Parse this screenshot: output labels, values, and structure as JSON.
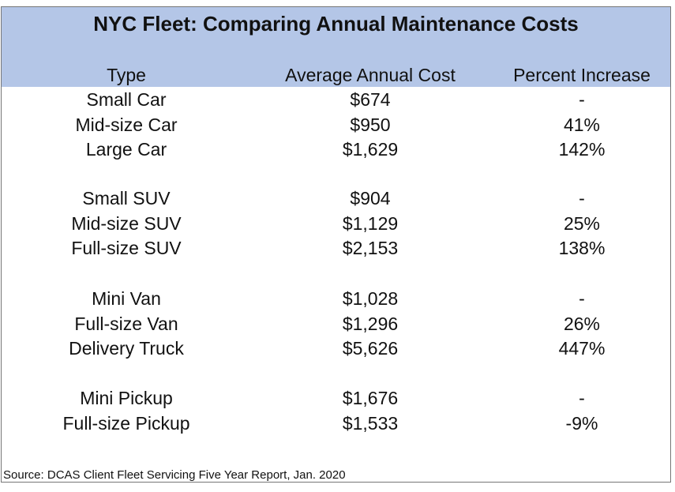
{
  "title": "NYC Fleet: Comparing Annual Maintenance Costs",
  "header_color": "#b4c6e7",
  "columns": [
    "Type",
    "Average Annual Cost",
    "Percent Increase"
  ],
  "groups": [
    [
      [
        "Small Car",
        "$674",
        "-"
      ],
      [
        "Mid-size Car",
        "$950",
        "41%"
      ],
      [
        "Large Car",
        "$1,629",
        "142%"
      ]
    ],
    [
      [
        "Small SUV",
        "$904",
        "-"
      ],
      [
        "Mid-size SUV",
        "$1,129",
        "25%"
      ],
      [
        "Full-size SUV",
        "$2,153",
        "138%"
      ]
    ],
    [
      [
        "Mini Van",
        "$1,028",
        "-"
      ],
      [
        "Full-size Van",
        "$1,296",
        "26%"
      ],
      [
        "Delivery Truck",
        "$5,626",
        "447%"
      ]
    ],
    [
      [
        "Mini Pickup",
        "$1,676",
        "-"
      ],
      [
        "Full-size Pickup",
        "$1,533",
        "-9%"
      ]
    ]
  ],
  "source": "Source: DCAS Client Fleet Servicing Five Year Report, Jan. 2020"
}
